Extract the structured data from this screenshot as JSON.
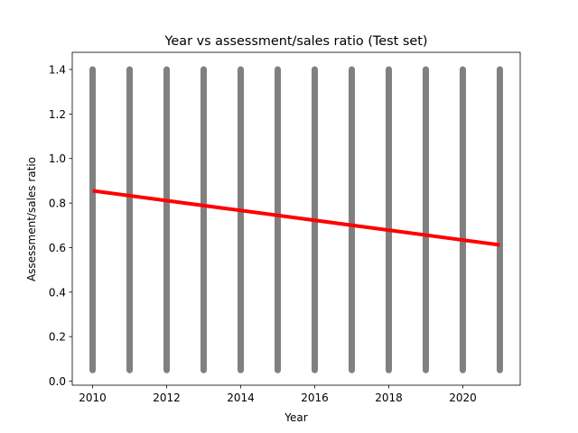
{
  "chart_data": {
    "type": "scatter",
    "title": "Year vs assessment/sales ratio (Test set)",
    "xlabel": "Year",
    "ylabel": "Assessment/sales ratio",
    "xlim": [
      2009.45,
      2021.55
    ],
    "ylim": [
      -0.018,
      1.477
    ],
    "xticks": [
      2010,
      2012,
      2014,
      2016,
      2018,
      2020
    ],
    "yticks": [
      0.0,
      0.2,
      0.4,
      0.6,
      0.8,
      1.0,
      1.2,
      1.4
    ],
    "ytick_labels": [
      "0.0",
      "0.2",
      "0.4",
      "0.6",
      "0.8",
      "1.0",
      "1.2",
      "1.4"
    ],
    "grid": false,
    "series": [
      {
        "kind": "scatter",
        "color": "#808080",
        "x": [
          2010,
          2011,
          2012,
          2013,
          2014,
          2015,
          2016,
          2017,
          2018,
          2019,
          2020,
          2021
        ],
        "y_min": [
          0.05,
          0.05,
          0.05,
          0.05,
          0.05,
          0.05,
          0.05,
          0.05,
          0.05,
          0.05,
          0.05,
          0.05
        ],
        "y_max": [
          1.4,
          1.4,
          1.4,
          1.4,
          1.4,
          1.4,
          1.4,
          1.4,
          1.4,
          1.4,
          1.4,
          1.4
        ]
      },
      {
        "kind": "line",
        "color": "#ff0000",
        "x": [
          2010,
          2021
        ],
        "y": [
          0.855,
          0.612
        ]
      }
    ]
  }
}
